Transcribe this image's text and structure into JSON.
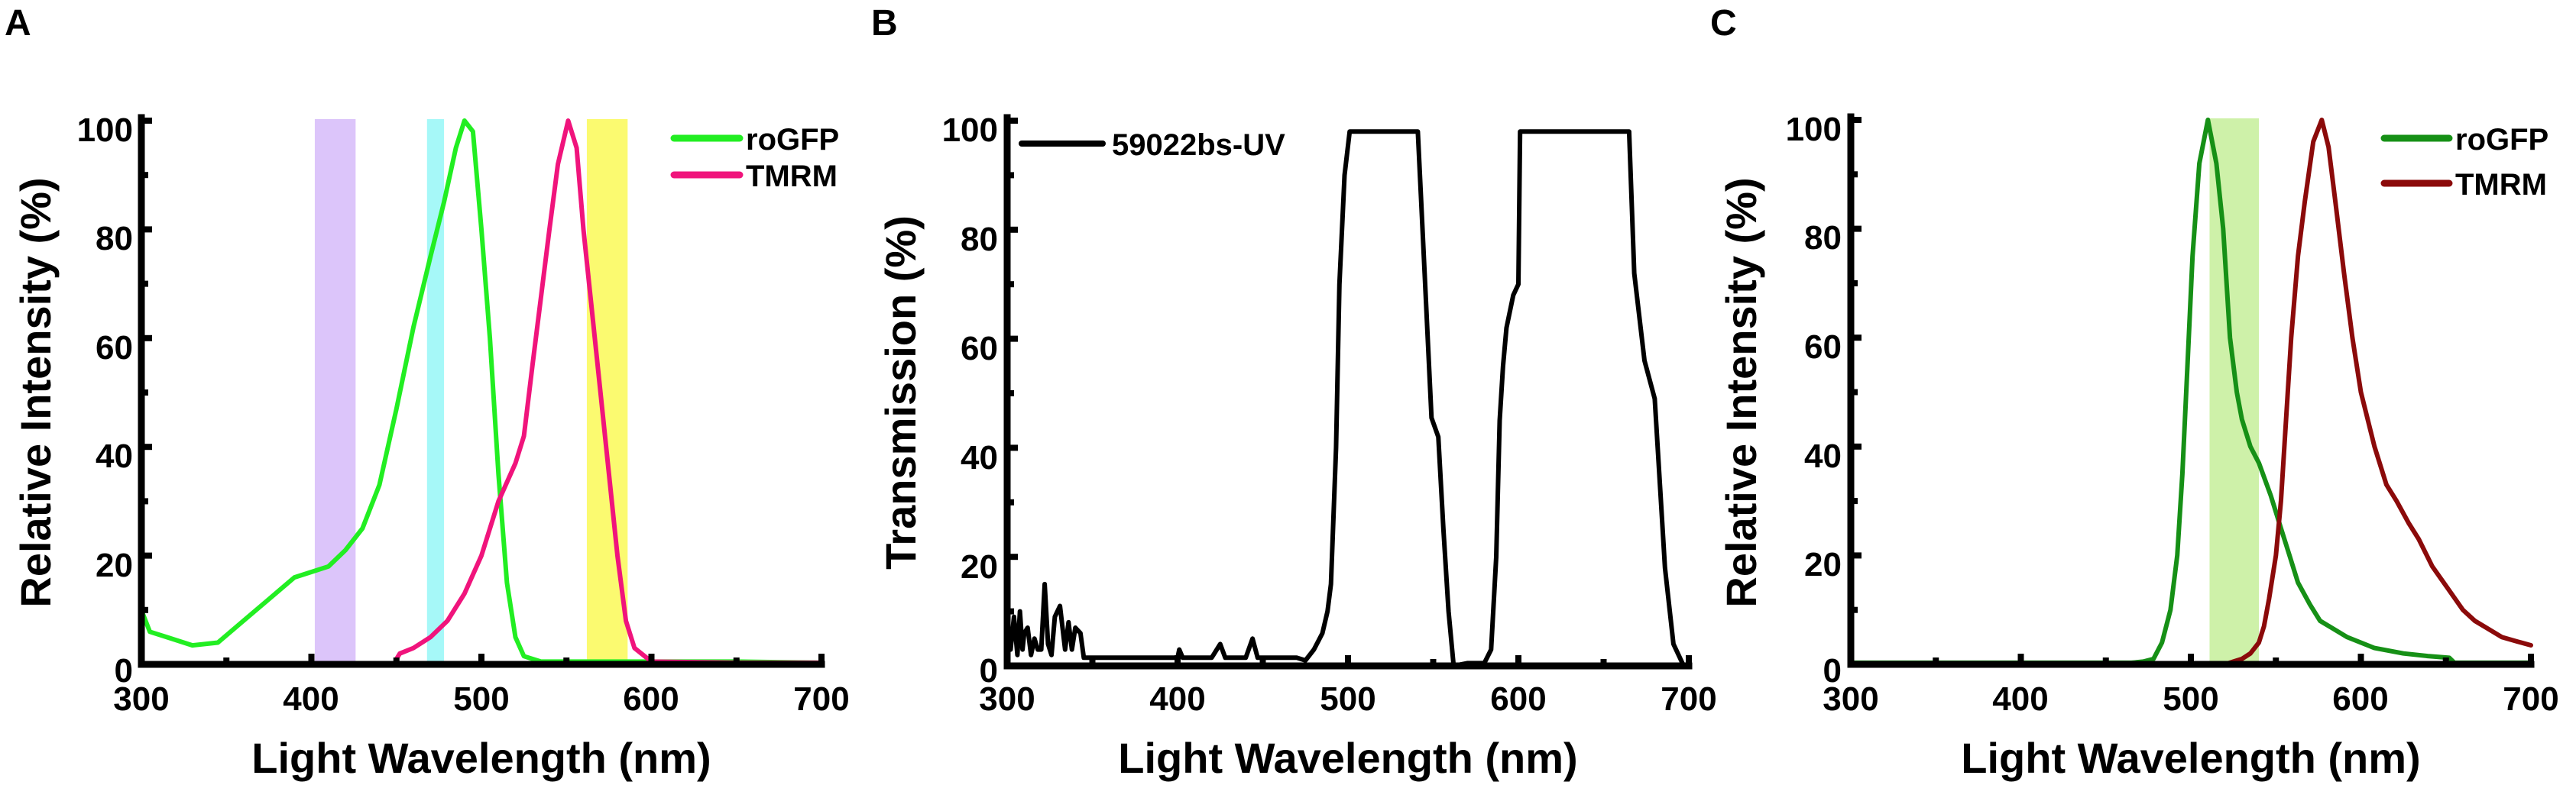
{
  "figure": {
    "panels": [
      {
        "letter": "A",
        "ylabel": "Relative Intensity (%)",
        "xlabel": "Light Wavelength (nm)",
        "xticks": [
          "300",
          "400",
          "500",
          "600",
          "700"
        ],
        "yticks": [
          "0",
          "20",
          "40",
          "60",
          "80",
          "100"
        ],
        "legend": [
          {
            "label": "roGFP",
            "color": "#22ee22"
          },
          {
            "label": "TMRM",
            "color": "#f0147c"
          }
        ]
      },
      {
        "letter": "B",
        "ylabel": "Transmission (%)",
        "xlabel": "Light Wavelength (nm)",
        "xticks": [
          "300",
          "400",
          "500",
          "600",
          "700"
        ],
        "yticks": [
          "0",
          "20",
          "40",
          "60",
          "80",
          "100"
        ],
        "legend": [
          {
            "label": "59022bs-UV",
            "color": "#000000"
          }
        ]
      },
      {
        "letter": "C",
        "ylabel": "Relative Intensity (%)",
        "xlabel": "Light Wavelength (nm)",
        "xticks": [
          "300",
          "400",
          "500",
          "600",
          "700"
        ],
        "yticks": [
          "0",
          "20",
          "40",
          "60",
          "80",
          "100"
        ],
        "legend": [
          {
            "label": "roGFP",
            "color": "#169016"
          },
          {
            "label": "TMRM",
            "color": "#8b0a0a"
          }
        ]
      }
    ]
  },
  "chart_data": [
    {
      "panel": "A",
      "type": "line",
      "title": "",
      "xlabel": "Light Wavelength (nm)",
      "ylabel": "Relative Intensity (%)",
      "xlim": [
        300,
        700
      ],
      "ylim": [
        0,
        100
      ],
      "xticks": [
        300,
        400,
        500,
        600,
        700
      ],
      "yticks": [
        0,
        20,
        40,
        60,
        80,
        100
      ],
      "grid": false,
      "legend_position": "upper right",
      "bands": [
        {
          "x0": 402,
          "x1": 426,
          "color": "#d8bffa"
        },
        {
          "x0": 468,
          "x1": 478,
          "color": "#9cf7f7"
        },
        {
          "x0": 562,
          "x1": 586,
          "color": "#fbfa60"
        }
      ],
      "series": [
        {
          "name": "roGFP",
          "color": "#22ee22",
          "x": [
            300,
            305,
            315,
            330,
            345,
            360,
            375,
            390,
            400,
            410,
            420,
            430,
            440,
            450,
            460,
            470,
            478,
            485,
            490,
            495,
            500,
            505,
            510,
            515,
            520,
            525,
            535,
            560,
            600,
            650,
            700
          ],
          "y": [
            10,
            6,
            5,
            3.5,
            4,
            8,
            12,
            16,
            17,
            18,
            21,
            25,
            33,
            47,
            62,
            75,
            85,
            95,
            100,
            98,
            80,
            60,
            35,
            15,
            5,
            1.5,
            0.5,
            0.5,
            0.5,
            0.5,
            0.3
          ]
        },
        {
          "name": "TMRM",
          "color": "#f0147c",
          "x": [
            300,
            400,
            449,
            450,
            452,
            460,
            470,
            480,
            490,
            500,
            510,
            520,
            525,
            530,
            540,
            545,
            551,
            556,
            560,
            570,
            580,
            585,
            590,
            600,
            650,
            700
          ],
          "y": [
            0,
            0,
            0,
            1,
            2,
            3,
            5,
            8,
            13,
            20,
            30,
            37,
            42,
            55,
            80,
            92,
            100,
            95,
            80,
            50,
            20,
            8,
            3,
            0.5,
            0.3,
            0.3
          ]
        }
      ]
    },
    {
      "panel": "B",
      "type": "line",
      "title": "",
      "xlabel": "Light Wavelength (nm)",
      "ylabel": "Transmission (%)",
      "xlim": [
        300,
        700
      ],
      "ylim": [
        0,
        100
      ],
      "xticks": [
        300,
        400,
        500,
        600,
        700
      ],
      "yticks": [
        0,
        20,
        40,
        60,
        80,
        100
      ],
      "grid": false,
      "legend_position": "upper left",
      "series": [
        {
          "name": "59022bs-UV",
          "color": "#000000",
          "x": [
            300,
            302,
            304,
            306,
            307.5,
            309,
            310,
            312,
            314,
            316,
            318,
            320,
            322,
            324,
            326,
            328,
            331,
            334,
            336,
            338,
            340,
            343,
            345,
            350,
            360,
            380,
            400,
            401,
            403,
            420,
            425,
            428,
            440,
            444,
            447,
            470,
            475,
            480,
            485,
            488,
            490,
            493,
            495,
            498,
            501,
            520,
            541,
            545,
            549,
            553,
            556,
            559,
            562,
            570,
            580,
            584,
            587,
            589,
            591,
            593,
            597,
            600,
            601,
            630,
            665,
            668,
            674,
            680,
            686,
            691,
            697,
            700
          ],
          "y": [
            8,
            3,
            9,
            2,
            10,
            3,
            6,
            7,
            2,
            5,
            3,
            3,
            15,
            4,
            2,
            9,
            11,
            3,
            8,
            3,
            7,
            6,
            1.5,
            1.5,
            1.5,
            1.5,
            1.5,
            3,
            1.5,
            1.5,
            4,
            1.5,
            1.5,
            5,
            1.5,
            1.5,
            1,
            3,
            6,
            10,
            15,
            40,
            70,
            90,
            98,
            98,
            98,
            72,
            45.5,
            42,
            25,
            10,
            0,
            0.5,
            0.5,
            3,
            20,
            45,
            55,
            62,
            68,
            70,
            98,
            98,
            98,
            72,
            56,
            49,
            18,
            4,
            0,
            0
          ]
        }
      ]
    },
    {
      "panel": "C",
      "type": "line",
      "title": "",
      "xlabel": "Light Wavelength (nm)",
      "ylabel": "Relative Intensity (%)",
      "xlim": [
        300,
        700
      ],
      "ylim": [
        0,
        100
      ],
      "xticks": [
        300,
        400,
        500,
        600,
        700
      ],
      "yticks": [
        0,
        20,
        40,
        60,
        80,
        100
      ],
      "grid": false,
      "legend_position": "upper right",
      "bands": [
        {
          "x0": 511,
          "x1": 540,
          "color": "#c9f0a0"
        }
      ],
      "series": [
        {
          "name": "roGFP",
          "color": "#169016",
          "x": [
            300,
            400,
            465,
            472,
            478,
            483,
            488,
            492,
            495,
            498,
            501,
            505,
            510,
            515,
            519,
            523,
            527,
            530,
            535,
            540,
            547,
            553,
            558,
            563,
            570,
            576,
            584,
            592,
            600,
            608,
            625,
            640,
            652,
            655,
            700
          ],
          "y": [
            0.3,
            0.3,
            0.3,
            0.5,
            1,
            4,
            10,
            20,
            35,
            55,
            75,
            92,
            100,
            92,
            80,
            60,
            50,
            45,
            40,
            37,
            31,
            25,
            20,
            15,
            11,
            8,
            6.5,
            5,
            4,
            3,
            2,
            1.5,
            1.2,
            0.3,
            0.3
          ]
        },
        {
          "name": "TMRM",
          "color": "#8b0a0a",
          "x": [
            300,
            400,
            500,
            520,
            525,
            530,
            535,
            540,
            543,
            546,
            550,
            553,
            556,
            559,
            563,
            567,
            572,
            577,
            581,
            585,
            590,
            595,
            600,
            608,
            615,
            621,
            628,
            634,
            642,
            651,
            660,
            667,
            675,
            683,
            692,
            700
          ],
          "y": [
            0,
            0,
            0,
            0,
            0.5,
            1,
            2,
            4,
            7,
            12,
            20,
            30,
            45,
            60,
            75,
            85,
            96,
            100,
            95,
            85,
            72,
            60,
            50,
            40,
            33,
            30,
            26,
            23,
            18,
            14,
            10,
            8,
            6.5,
            5,
            4.2,
            3.5
          ]
        }
      ]
    }
  ]
}
